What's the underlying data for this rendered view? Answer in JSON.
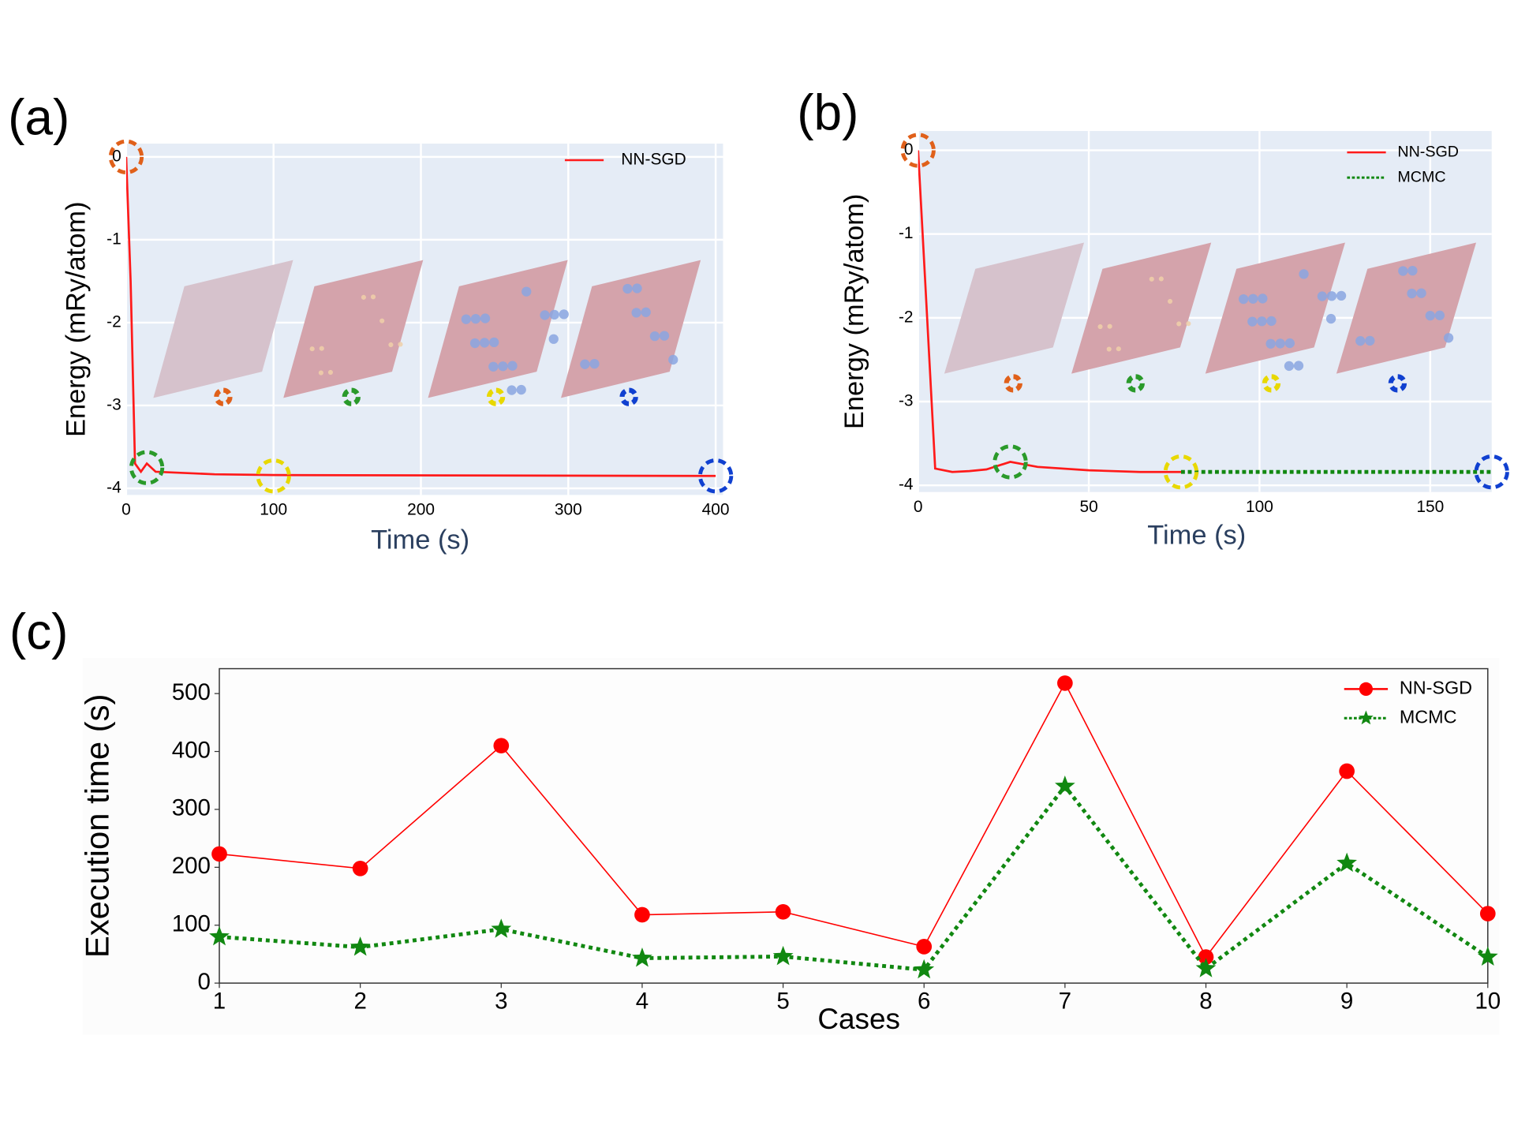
{
  "chart_data": [
    {
      "type": "line",
      "panel_label": "(a)",
      "xlabel": "Time (s)",
      "ylabel": "Energy (mRy/atom)",
      "xlim": [
        0,
        405
      ],
      "ylim": [
        -4.08,
        0.16
      ],
      "xticks": [
        0,
        100,
        200,
        300,
        400
      ],
      "yticks": [
        0,
        -1,
        -2,
        -3,
        -4
      ],
      "grid": true,
      "legend": "upper right",
      "series": [
        {
          "name": "NN-SGD",
          "color": "#ff1a1a",
          "linestyle": "solid",
          "x": [
            0,
            3,
            6,
            10,
            14,
            20,
            60,
            100,
            400
          ],
          "values": [
            0,
            -1.5,
            -3.7,
            -3.8,
            -3.7,
            -3.8,
            -3.83,
            -3.84,
            -3.85
          ]
        }
      ],
      "highlights": [
        {
          "x": 0,
          "y": 0,
          "color": "#e0601a"
        },
        {
          "x": 14,
          "y": -3.75,
          "color": "#2a9a2a"
        },
        {
          "x": 100,
          "y": -3.85,
          "color": "#e8d800"
        },
        {
          "x": 400,
          "y": -3.85,
          "color": "#1040d0"
        }
      ]
    },
    {
      "type": "line",
      "panel_label": "(b)",
      "xlabel": "Time (s)",
      "ylabel": "Energy (mRy/atom)",
      "xlim": [
        0,
        168
      ],
      "ylim": [
        -4.08,
        0.23
      ],
      "xticks": [
        0,
        50,
        100,
        150
      ],
      "yticks": [
        0,
        -1,
        -2,
        -3,
        -4
      ],
      "grid": true,
      "legend": "upper right",
      "series": [
        {
          "name": "NN-SGD",
          "color": "#ff1a1a",
          "linestyle": "solid",
          "x": [
            0,
            2,
            5,
            10,
            15,
            20,
            27,
            35,
            50,
            65,
            77
          ],
          "values": [
            0,
            -1.5,
            -3.8,
            -3.84,
            -3.83,
            -3.81,
            -3.72,
            -3.78,
            -3.82,
            -3.84,
            -3.84
          ]
        },
        {
          "name": "MCMC",
          "color": "#118811",
          "linestyle": "dotted",
          "x": [
            77,
            168
          ],
          "values": [
            -3.84,
            -3.84
          ]
        }
      ],
      "highlights": [
        {
          "x": 0,
          "y": 0,
          "color": "#e0601a"
        },
        {
          "x": 27,
          "y": -3.72,
          "color": "#2a9a2a"
        },
        {
          "x": 77,
          "y": -3.84,
          "color": "#e8d800"
        },
        {
          "x": 168,
          "y": -3.84,
          "color": "#1040d0"
        }
      ]
    },
    {
      "type": "line",
      "panel_label": "(c)",
      "xlabel": "Cases",
      "ylabel": "Execution time (s)",
      "xlim": [
        1,
        10
      ],
      "ylim": [
        0,
        543
      ],
      "xticks": [
        1,
        2,
        3,
        4,
        5,
        6,
        7,
        8,
        9,
        10
      ],
      "yticks": [
        0,
        100,
        200,
        300,
        400,
        500
      ],
      "grid": false,
      "legend": "upper right",
      "series": [
        {
          "name": "NN-SGD",
          "color": "#ff0000",
          "linestyle": "solid",
          "marker": "circle",
          "x": [
            1,
            2,
            3,
            4,
            5,
            6,
            7,
            8,
            9,
            10
          ],
          "values": [
            223,
            198,
            410,
            118,
            123,
            63,
            518,
            45,
            366,
            120
          ]
        },
        {
          "name": "MCMC",
          "color": "#118811",
          "linestyle": "dotted",
          "marker": "star",
          "x": [
            1,
            2,
            3,
            4,
            5,
            6,
            7,
            8,
            9,
            10
          ],
          "values": [
            80,
            62,
            93,
            43,
            46,
            23,
            340,
            25,
            207,
            45
          ]
        }
      ]
    }
  ]
}
